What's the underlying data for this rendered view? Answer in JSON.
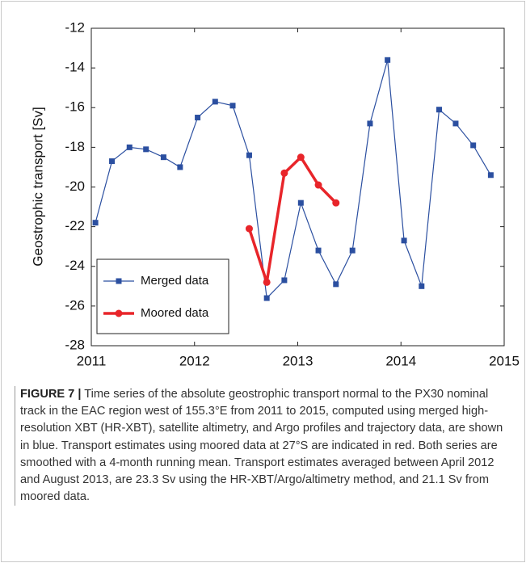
{
  "chart_data": {
    "type": "line",
    "ylabel": "Geostrophic transport  [Sv]",
    "xlim": [
      2011,
      2015
    ],
    "xticks": [
      2011,
      2012,
      2013,
      2014,
      2015
    ],
    "ylim": [
      -28,
      -12
    ],
    "yticks": [
      -28,
      -26,
      -24,
      -22,
      -20,
      -18,
      -16,
      -14,
      -12
    ],
    "legend": "lower left",
    "series": [
      {
        "name": "Merged data",
        "color": "#2b4fa0",
        "marker": "square",
        "x": [
          2011.04,
          2011.2,
          2011.37,
          2011.53,
          2011.7,
          2011.86,
          2012.03,
          2012.2,
          2012.37,
          2012.53,
          2012.7,
          2012.87,
          2013.03,
          2013.2,
          2013.37,
          2013.53,
          2013.7,
          2013.87,
          2014.03,
          2014.2,
          2014.37,
          2014.53,
          2014.7,
          2014.87
        ],
        "values": [
          -21.8,
          -18.7,
          -18.0,
          -18.1,
          -18.5,
          -19.0,
          -16.5,
          -15.7,
          -15.9,
          -18.4,
          -25.6,
          -24.7,
          -20.8,
          -23.2,
          -24.9,
          -23.2,
          -16.8,
          -13.6,
          -22.7,
          -25.0,
          -16.1,
          -16.8,
          -17.9,
          -19.4
        ]
      },
      {
        "name": "Moored data",
        "color": "#e8252a",
        "marker": "circle",
        "x": [
          2012.53,
          2012.7,
          2012.87,
          2013.03,
          2013.2,
          2013.37
        ],
        "values": [
          -22.1,
          -24.8,
          -19.3,
          -18.5,
          -19.9,
          -20.8
        ]
      }
    ]
  },
  "caption": {
    "label": "FIGURE 7 |",
    "text": "Time series of the absolute geostrophic transport normal to the PX30 nominal track in the EAC region west of 155.3°E from 2011 to 2015, computed using merged high-resolution XBT (HR-XBT), satellite altimetry, and Argo profiles and trajectory data, are shown in blue. Transport estimates using moored data at 27°S are indicated in red. Both series are smoothed with a 4-month running mean. Transport estimates averaged between April 2012 and August 2013, are 23.3 Sv using the HR-XBT/Argo/altimetry method, and 21.1 Sv from moored data."
  }
}
